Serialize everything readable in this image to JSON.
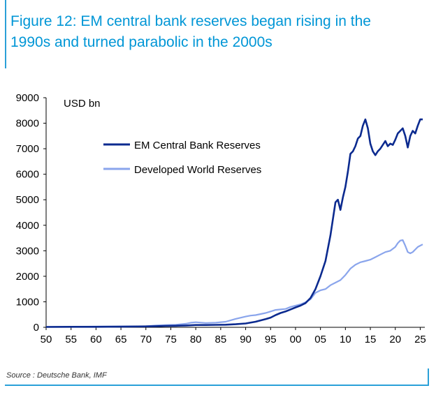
{
  "figure": {
    "title_line1": "Figure 12: EM central bank reserves began rising in the",
    "title_line2": "1990s and turned parabolic in the 2000s",
    "source": "Source : Deutsche Bank, IMF"
  },
  "colors": {
    "accent": "#0096d6",
    "em_series": "#0b2a8f",
    "dev_series": "#8aa5ec",
    "axis": "#000000"
  },
  "chart_data": {
    "type": "line",
    "title": "",
    "unit_label": "USD bn",
    "xlabel": "",
    "ylabel": "",
    "xlim": [
      50,
      26
    ],
    "ylim": [
      0,
      9000
    ],
    "y_ticks": [
      "0",
      "1000",
      "2000",
      "3000",
      "4000",
      "5000",
      "6000",
      "7000",
      "8000",
      "9000"
    ],
    "x_ticks": [
      "50",
      "55",
      "60",
      "65",
      "70",
      "75",
      "80",
      "85",
      "90",
      "95",
      "00",
      "05",
      "10",
      "15",
      "20",
      "25"
    ],
    "grid": false,
    "legend_placement": "upper-left",
    "series": [
      {
        "name": "EM Central Bank Reserves",
        "color": "#0b2a8f",
        "points": [
          [
            1950,
            15
          ],
          [
            1955,
            18
          ],
          [
            1960,
            20
          ],
          [
            1965,
            25
          ],
          [
            1970,
            35
          ],
          [
            1972,
            45
          ],
          [
            1974,
            55
          ],
          [
            1976,
            60
          ],
          [
            1978,
            70
          ],
          [
            1980,
            90
          ],
          [
            1982,
            90
          ],
          [
            1984,
            95
          ],
          [
            1986,
            100
          ],
          [
            1988,
            120
          ],
          [
            1990,
            150
          ],
          [
            1992,
            220
          ],
          [
            1994,
            320
          ],
          [
            1995,
            380
          ],
          [
            1996,
            480
          ],
          [
            1997,
            560
          ],
          [
            1998,
            620
          ],
          [
            1999,
            700
          ],
          [
            2000,
            780
          ],
          [
            2001,
            850
          ],
          [
            2002,
            950
          ],
          [
            2003,
            1150
          ],
          [
            2004,
            1500
          ],
          [
            2005,
            2000
          ],
          [
            2006,
            2600
          ],
          [
            2007,
            3600
          ],
          [
            2008,
            4900
          ],
          [
            2008.5,
            5000
          ],
          [
            2009,
            4600
          ],
          [
            2009.5,
            5100
          ],
          [
            2010,
            5500
          ],
          [
            2010.5,
            6100
          ],
          [
            2011,
            6800
          ],
          [
            2011.5,
            6900
          ],
          [
            2012,
            7100
          ],
          [
            2012.5,
            7400
          ],
          [
            2013,
            7500
          ],
          [
            2013.5,
            7900
          ],
          [
            2014,
            8150
          ],
          [
            2014.5,
            7800
          ],
          [
            2015,
            7200
          ],
          [
            2015.5,
            6900
          ],
          [
            2016,
            6750
          ],
          [
            2016.5,
            6900
          ],
          [
            2017,
            7000
          ],
          [
            2017.5,
            7150
          ],
          [
            2018,
            7300
          ],
          [
            2018.5,
            7100
          ],
          [
            2019,
            7200
          ],
          [
            2019.5,
            7150
          ],
          [
            2020,
            7350
          ],
          [
            2020.5,
            7600
          ],
          [
            2021,
            7700
          ],
          [
            2021.5,
            7800
          ],
          [
            2022,
            7500
          ],
          [
            2022.5,
            7050
          ],
          [
            2023,
            7500
          ],
          [
            2023.5,
            7700
          ],
          [
            2024,
            7600
          ],
          [
            2024.5,
            7900
          ],
          [
            2025,
            8150
          ],
          [
            2025.5,
            8150
          ]
        ]
      },
      {
        "name": "Developed World Reserves",
        "color": "#8aa5ec",
        "points": [
          [
            1950,
            20
          ],
          [
            1955,
            25
          ],
          [
            1960,
            30
          ],
          [
            1965,
            35
          ],
          [
            1970,
            40
          ],
          [
            1972,
            70
          ],
          [
            1974,
            90
          ],
          [
            1976,
            100
          ],
          [
            1978,
            140
          ],
          [
            1979,
            180
          ],
          [
            1980,
            200
          ],
          [
            1982,
            170
          ],
          [
            1984,
            180
          ],
          [
            1986,
            220
          ],
          [
            1988,
            330
          ],
          [
            1990,
            420
          ],
          [
            1991,
            460
          ],
          [
            1992,
            480
          ],
          [
            1993,
            520
          ],
          [
            1994,
            560
          ],
          [
            1995,
            620
          ],
          [
            1996,
            680
          ],
          [
            1997,
            700
          ],
          [
            1998,
            720
          ],
          [
            1999,
            800
          ],
          [
            2000,
            850
          ],
          [
            2001,
            900
          ],
          [
            2002,
            980
          ],
          [
            2003,
            1100
          ],
          [
            2004,
            1350
          ],
          [
            2005,
            1450
          ],
          [
            2006,
            1500
          ],
          [
            2007,
            1650
          ],
          [
            2008,
            1750
          ],
          [
            2009,
            1850
          ],
          [
            2010,
            2050
          ],
          [
            2011,
            2300
          ],
          [
            2012,
            2450
          ],
          [
            2013,
            2550
          ],
          [
            2014,
            2600
          ],
          [
            2015,
            2650
          ],
          [
            2016,
            2750
          ],
          [
            2017,
            2850
          ],
          [
            2018,
            2950
          ],
          [
            2019,
            3000
          ],
          [
            2020,
            3150
          ],
          [
            2020.5,
            3300
          ],
          [
            2021,
            3400
          ],
          [
            2021.5,
            3420
          ],
          [
            2022,
            3200
          ],
          [
            2022.5,
            2950
          ],
          [
            2023,
            2900
          ],
          [
            2023.5,
            2950
          ],
          [
            2024,
            3050
          ],
          [
            2024.5,
            3150
          ],
          [
            2025,
            3200
          ],
          [
            2025.5,
            3250
          ]
        ]
      }
    ]
  }
}
